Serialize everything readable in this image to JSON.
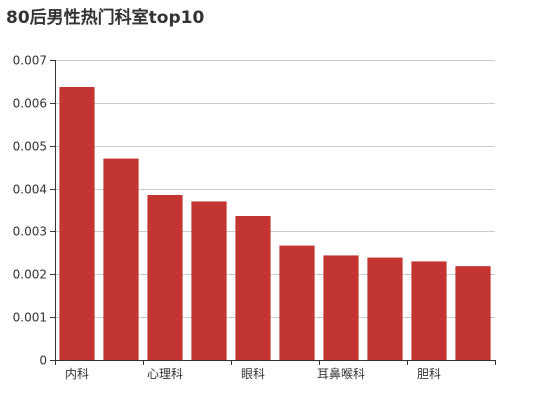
{
  "chart_data": {
    "type": "bar",
    "title": "80后男性热门科室top10",
    "xlabel": "",
    "ylabel": "",
    "categories": [
      "内科",
      "",
      "心理科",
      "",
      "眼科",
      "",
      "耳鼻喉科",
      "",
      "胆科",
      ""
    ],
    "values": [
      0.00637,
      0.0047,
      0.00385,
      0.0037,
      0.00336,
      0.00267,
      0.00244,
      0.00239,
      0.0023,
      0.00219
    ],
    "ylim": [
      0,
      0.007
    ],
    "y_ticks": [
      "0",
      "0.001",
      "0.002",
      "0.003",
      "0.004",
      "0.005",
      "0.006",
      "0.007"
    ],
    "grid": true,
    "bar_color": "#c23531",
    "grid_color": "#cccccc",
    "axis_color": "#333333"
  }
}
